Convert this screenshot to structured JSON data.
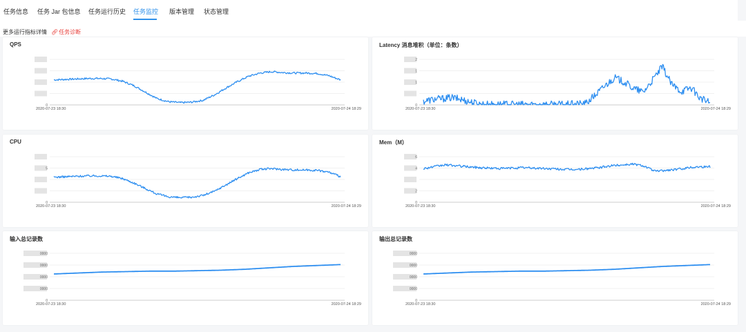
{
  "tabs": [
    {
      "label": "任务信息",
      "active": false
    },
    {
      "label": "任务 Jar 包信息",
      "active": false
    },
    {
      "label": "任务运行历史",
      "active": false
    },
    {
      "label": "任务监控",
      "active": true
    },
    {
      "label": "版本管理",
      "active": false
    },
    {
      "label": "状态管理",
      "active": false
    }
  ],
  "subbar": {
    "more_text": "更多运行指标详情",
    "diagnose_link": "任务诊断"
  },
  "colors": {
    "accent": "#2e90ea",
    "line": "#2d8ef0",
    "link_red": "#e8413c",
    "redacted": "#e4e4e4"
  },
  "chart_data": [
    {
      "id": "qps",
      "title": "QPS",
      "type": "line",
      "x_start": "2020-07-23 18:30",
      "x_end": "2020-07-24 18:29",
      "ylim": [
        0,
        100
      ],
      "y_tick_labels": [
        "0",
        "",
        "",
        "",
        ""
      ],
      "redacted_ticks": true,
      "series": [
        {
          "values": [
            55,
            56,
            57,
            58,
            58,
            57,
            52,
            42,
            28,
            14,
            7,
            5,
            6,
            10,
            22,
            37,
            51,
            63,
            70,
            73,
            71,
            70,
            70,
            69,
            64,
            55
          ],
          "noise": 2.0
        }
      ]
    },
    {
      "id": "latency",
      "title": "Latency 消息堆积（单位：条数）",
      "type": "line",
      "x_start": "2020-07-23 18:30",
      "x_end": "2020-07-24 18:29",
      "ylim": [
        0,
        100
      ],
      "y_tick_labels": [
        "0",
        "",
        "1",
        "1",
        "2"
      ],
      "redacted_ticks": true,
      "series": [
        {
          "values": [
            8,
            12,
            14,
            16,
            12,
            6,
            2,
            1,
            1,
            1,
            1,
            1,
            1,
            1,
            1,
            1,
            2,
            3,
            22,
            42,
            60,
            50,
            36,
            28,
            55,
            84,
            44,
            30,
            38,
            14,
            5
          ],
          "noise": 8.0
        }
      ]
    },
    {
      "id": "cpu",
      "title": "CPU",
      "type": "line",
      "x_start": "2020-07-23 18:30",
      "x_end": "2020-07-24 18:29",
      "ylim": [
        0,
        100
      ],
      "y_tick_labels": [
        "0",
        "",
        "",
        "5",
        ""
      ],
      "redacted_ticks": true,
      "series": [
        {
          "values": [
            55,
            56,
            57,
            58,
            58,
            57,
            52,
            42,
            30,
            18,
            12,
            10,
            11,
            15,
            24,
            38,
            52,
            65,
            72,
            74,
            72,
            71,
            71,
            70,
            66,
            56
          ],
          "noise": 2.2
        }
      ]
    },
    {
      "id": "mem",
      "title": "Mem（M）",
      "type": "line",
      "x_start": "2020-07-23 18:30",
      "x_end": "2020-07-24 18:29",
      "ylim": [
        0,
        100
      ],
      "y_tick_labels": [
        "0",
        "2",
        "",
        "4",
        "6"
      ],
      "redacted_ticks": true,
      "series": [
        {
          "values": [
            74,
            78,
            82,
            80,
            78,
            76,
            75,
            74,
            75,
            76,
            75,
            74,
            73,
            72,
            72,
            74,
            76,
            80,
            82,
            84,
            80,
            68,
            70,
            72,
            76,
            78,
            78
          ],
          "noise": 2.5
        }
      ]
    },
    {
      "id": "input_records",
      "title": "输入总记录数",
      "type": "line",
      "x_start": "2020-07-23 18:30",
      "x_end": "2020-07-24 18:29",
      "ylim": [
        0,
        100
      ],
      "y_tick_labels": [
        "0",
        "0000",
        "0000",
        "0000",
        "0000"
      ],
      "redacted_ticks": true,
      "series": [
        {
          "values": [
            56,
            58,
            60,
            61,
            62,
            62,
            63,
            64,
            66,
            69,
            72,
            74,
            76
          ],
          "noise": 0.0
        }
      ]
    },
    {
      "id": "output_records",
      "title": "输出总记录数",
      "type": "line",
      "x_start": "2020-07-23 18:30",
      "x_end": "2020-07-24 18:29",
      "ylim": [
        0,
        100
      ],
      "y_tick_labels": [
        "0",
        "0000",
        "0000",
        "0000",
        "0000"
      ],
      "redacted_ticks": true,
      "series": [
        {
          "values": [
            56,
            58,
            60,
            61,
            62,
            62,
            63,
            64,
            66,
            69,
            72,
            74,
            76
          ],
          "noise": 0.0
        }
      ]
    }
  ]
}
